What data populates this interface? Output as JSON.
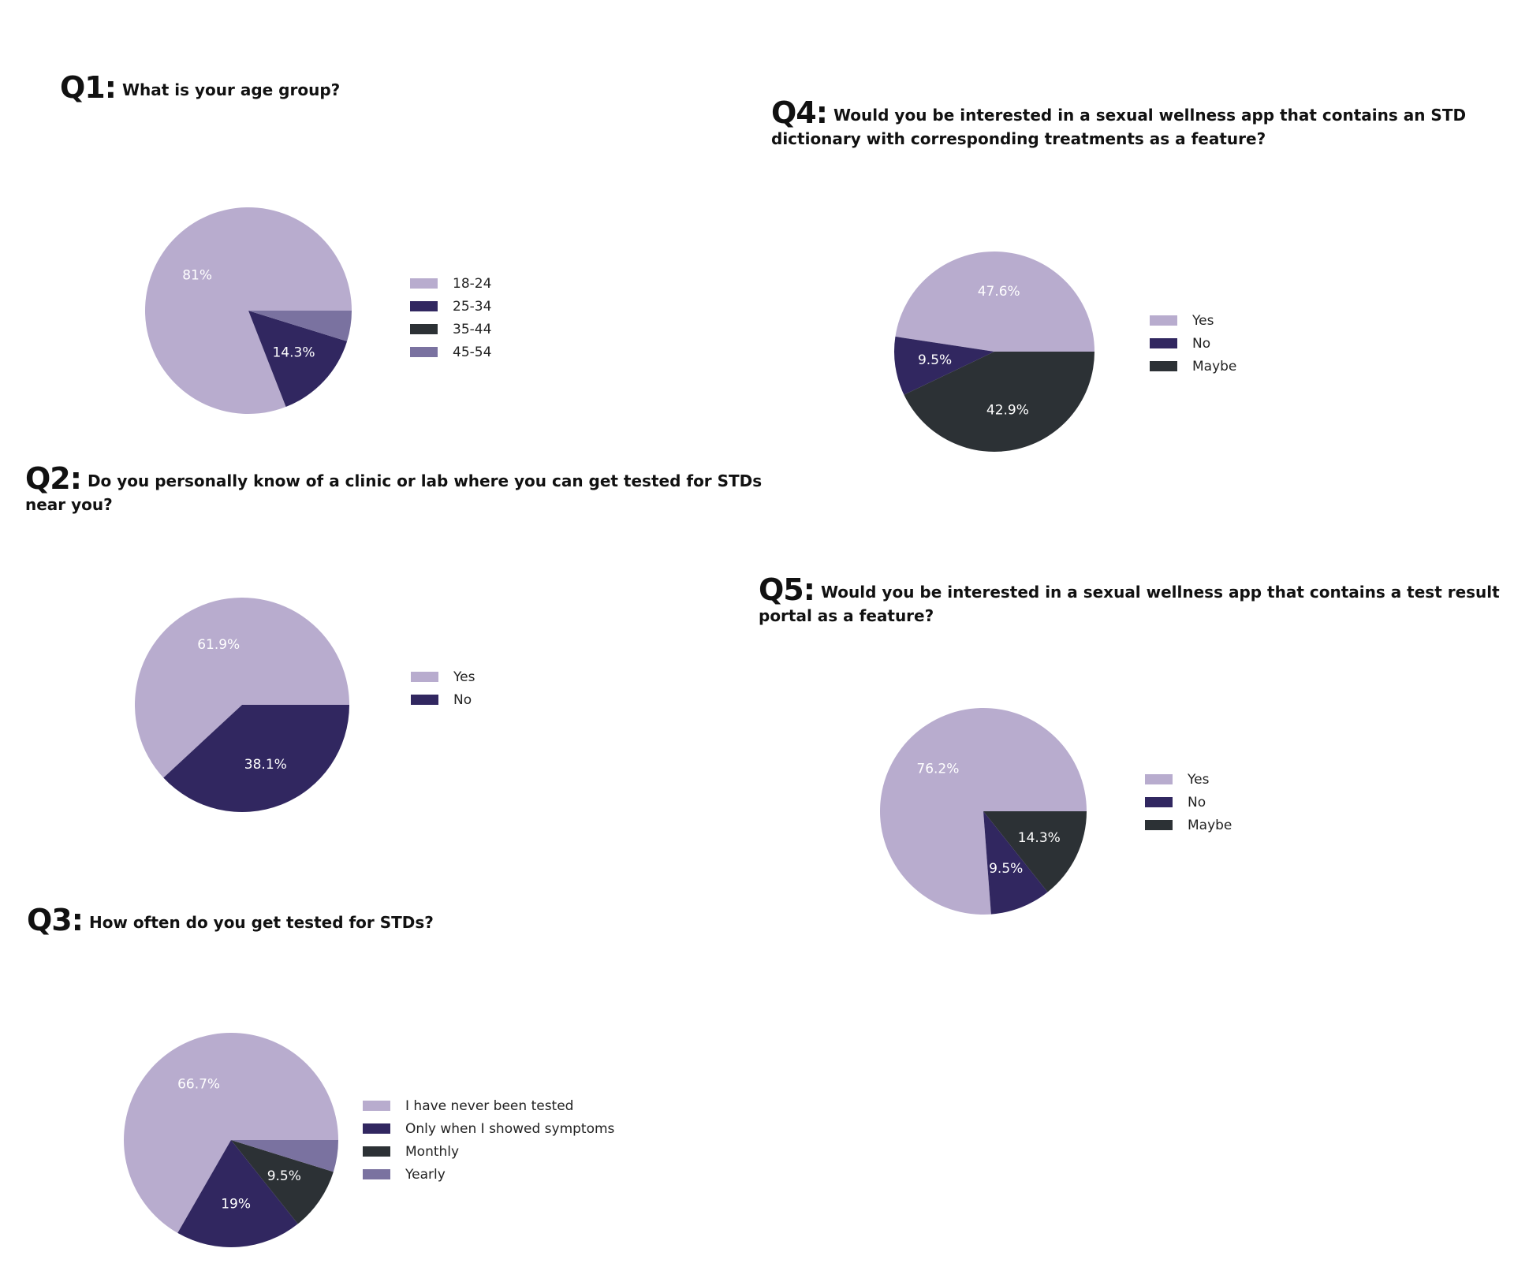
{
  "colors": {
    "lavender": "#b8acce",
    "indigo": "#312760",
    "charcoal": "#2c3135",
    "slate": "#7a72a0"
  },
  "chart_data": [
    {
      "id": "q1",
      "type": "pie",
      "number": "Q1:",
      "title": "What is your age group?",
      "categories": [
        "18-24",
        "25-34",
        "35-44",
        "45-54"
      ],
      "values": [
        81,
        14.3,
        0,
        4.8
      ],
      "labels": [
        "81%",
        "14.3%",
        "",
        ""
      ],
      "colors": [
        "#b8acce",
        "#312760",
        "#2c3135",
        "#7a72a0"
      ],
      "legend": "right"
    },
    {
      "id": "q2",
      "type": "pie",
      "number": "Q2:",
      "title": "Do you personally know of a clinic or lab where you can get tested for STDs near you?",
      "categories": [
        "Yes",
        "No"
      ],
      "values": [
        61.9,
        38.1
      ],
      "labels": [
        "61.9%",
        "38.1%"
      ],
      "colors": [
        "#b8acce",
        "#312760"
      ],
      "legend": "right"
    },
    {
      "id": "q3",
      "type": "pie",
      "number": "Q3:",
      "title": "How often do you get tested for STDs?",
      "categories": [
        "I have never been tested",
        "Only when I showed symptoms",
        "Monthly",
        "Yearly"
      ],
      "values": [
        66.7,
        19,
        9.5,
        4.8
      ],
      "labels": [
        "66.7%",
        "19%",
        "9.5%",
        ""
      ],
      "colors": [
        "#b8acce",
        "#312760",
        "#2c3135",
        "#7a72a0"
      ],
      "legend": "right"
    },
    {
      "id": "q4",
      "type": "pie",
      "number": "Q4:",
      "title": "Would you be interested in a sexual wellness app that contains an STD dictionary with corresponding treatments as a feature?",
      "categories": [
        "Yes",
        "No",
        "Maybe"
      ],
      "values": [
        47.6,
        9.5,
        42.9
      ],
      "labels": [
        "47.6%",
        "9.5%",
        "42.9%"
      ],
      "colors": [
        "#b8acce",
        "#312760",
        "#2c3135"
      ],
      "legend": "right"
    },
    {
      "id": "q5",
      "type": "pie",
      "number": "Q5:",
      "title": "Would you be interested in a sexual wellness app that contains a test result portal as a feature?",
      "categories": [
        "Yes",
        "No",
        "Maybe"
      ],
      "values": [
        76.2,
        9.5,
        14.3
      ],
      "labels": [
        "76.2%",
        "9.5%",
        "14.3%"
      ],
      "colors": [
        "#b8acce",
        "#312760",
        "#2c3135"
      ],
      "legend": "right"
    }
  ]
}
